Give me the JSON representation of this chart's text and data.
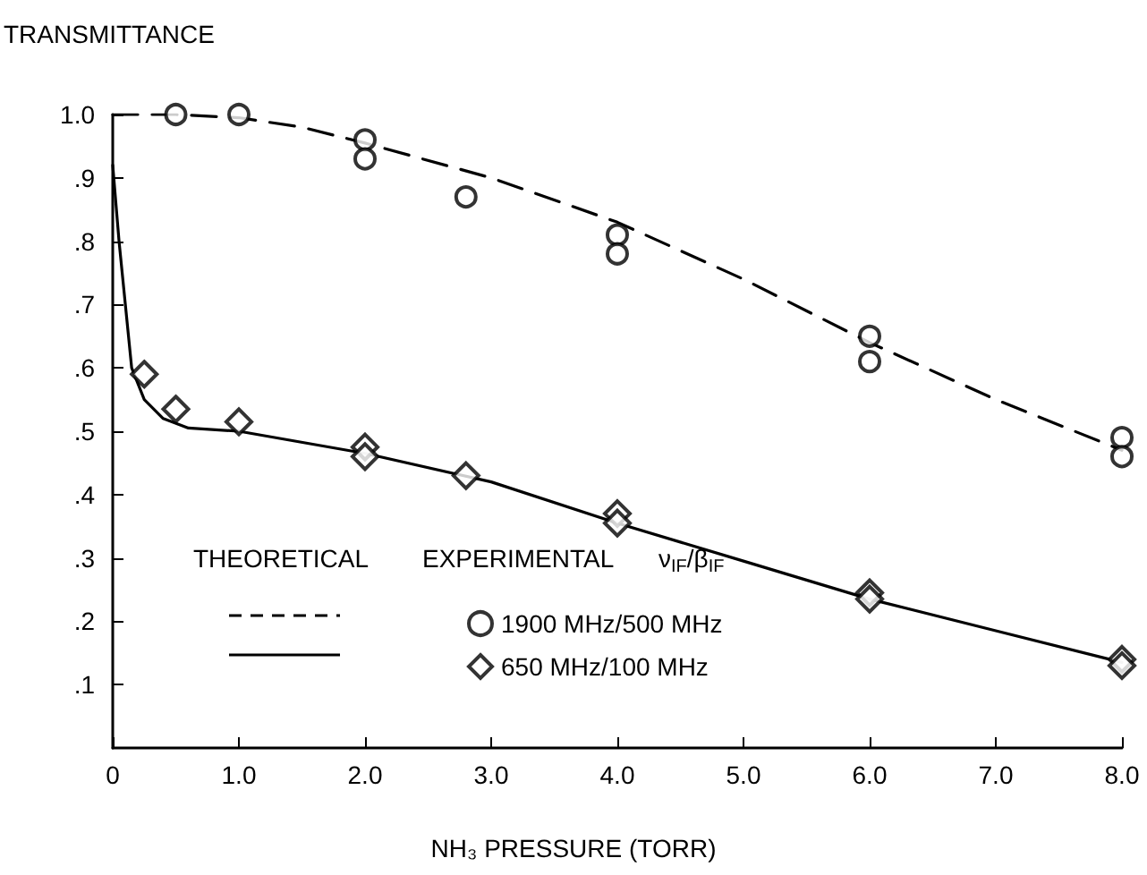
{
  "chart_data": {
    "type": "line",
    "ylabel": "TRANSMITTANCE",
    "xlabel": "NH₃ PRESSURE (TORR)",
    "xlim": [
      0,
      8
    ],
    "xticks": [
      0,
      {
        "value": 1,
        "label": "1.0"
      },
      {
        "value": 2,
        "label": "2.0"
      },
      {
        "value": 3,
        "label": "3.0"
      },
      {
        "value": 4,
        "label": "4.0"
      },
      {
        "value": 5,
        "label": "5.0"
      },
      {
        "value": 6,
        "label": "6.0"
      },
      {
        "value": 7,
        "label": "7.0"
      },
      {
        "value": 8,
        "label": "8.0"
      }
    ],
    "ylim": [
      0,
      1
    ],
    "yticks": [
      {
        "value": 0.1,
        "label": ".1"
      },
      {
        "value": 0.2,
        "label": ".2"
      },
      {
        "value": 0.3,
        "label": ".3"
      },
      {
        "value": 0.4,
        "label": ".4"
      },
      {
        "value": 0.5,
        "label": ".5"
      },
      {
        "value": 0.6,
        "label": ".6"
      },
      {
        "value": 0.7,
        "label": ".7"
      },
      {
        "value": 0.8,
        "label": ".8"
      },
      {
        "value": 0.9,
        "label": ".9"
      },
      {
        "value": 1,
        "label": "1.0"
      }
    ],
    "grid": false,
    "legend": "bottom",
    "annotations": [
      "THEORETICAL",
      "EXPERIMENTAL",
      "ν$_{IF}$/β$_{IF}$"
    ],
    "series": [
      {
        "type": "line",
        "line_style": "dashed",
        "marker": "none",
        "color": "#000000",
        "x": [
          0,
          0.5,
          1,
          1.5,
          2,
          3,
          4,
          5,
          6,
          7,
          8
        ],
        "values": [
          1,
          1,
          0.995,
          0.98,
          0.955,
          0.9,
          0.83,
          0.74,
          0.64,
          0.55,
          0.47
        ]
      },
      {
        "type": "line",
        "line_style": "solid",
        "marker": "none",
        "color": "#000000",
        "x": [
          0,
          0.05,
          0.1,
          0.15,
          0.25,
          0.4,
          0.6,
          1,
          2,
          3,
          4,
          5,
          6,
          7,
          8
        ],
        "values": [
          0.92,
          0.8,
          0.7,
          0.6,
          0.55,
          0.52,
          0.505,
          0.5,
          0.465,
          0.42,
          0.355,
          0.295,
          0.235,
          0.185,
          0.135
        ]
      },
      {
        "type": "scatter",
        "name": "1900 MHz/500 MHz",
        "marker": "circle",
        "color": "#000000",
        "x": [
          0.5,
          1,
          2,
          2,
          2.8,
          4,
          4,
          6,
          6,
          8,
          8
        ],
        "values": [
          1,
          1,
          0.96,
          0.93,
          0.87,
          0.81,
          0.78,
          0.65,
          0.61,
          0.49,
          0.46
        ]
      },
      {
        "type": "scatter",
        "name": "650 MHz/100 MHz",
        "marker": "diamond",
        "color": "#000000",
        "x": [
          0.25,
          0.5,
          1,
          2,
          2,
          2.8,
          4,
          4,
          6,
          6,
          8,
          8
        ],
        "values": [
          0.59,
          0.535,
          0.515,
          0.475,
          0.46,
          0.43,
          0.37,
          0.355,
          0.245,
          0.235,
          0.14,
          0.13
        ]
      }
    ]
  }
}
